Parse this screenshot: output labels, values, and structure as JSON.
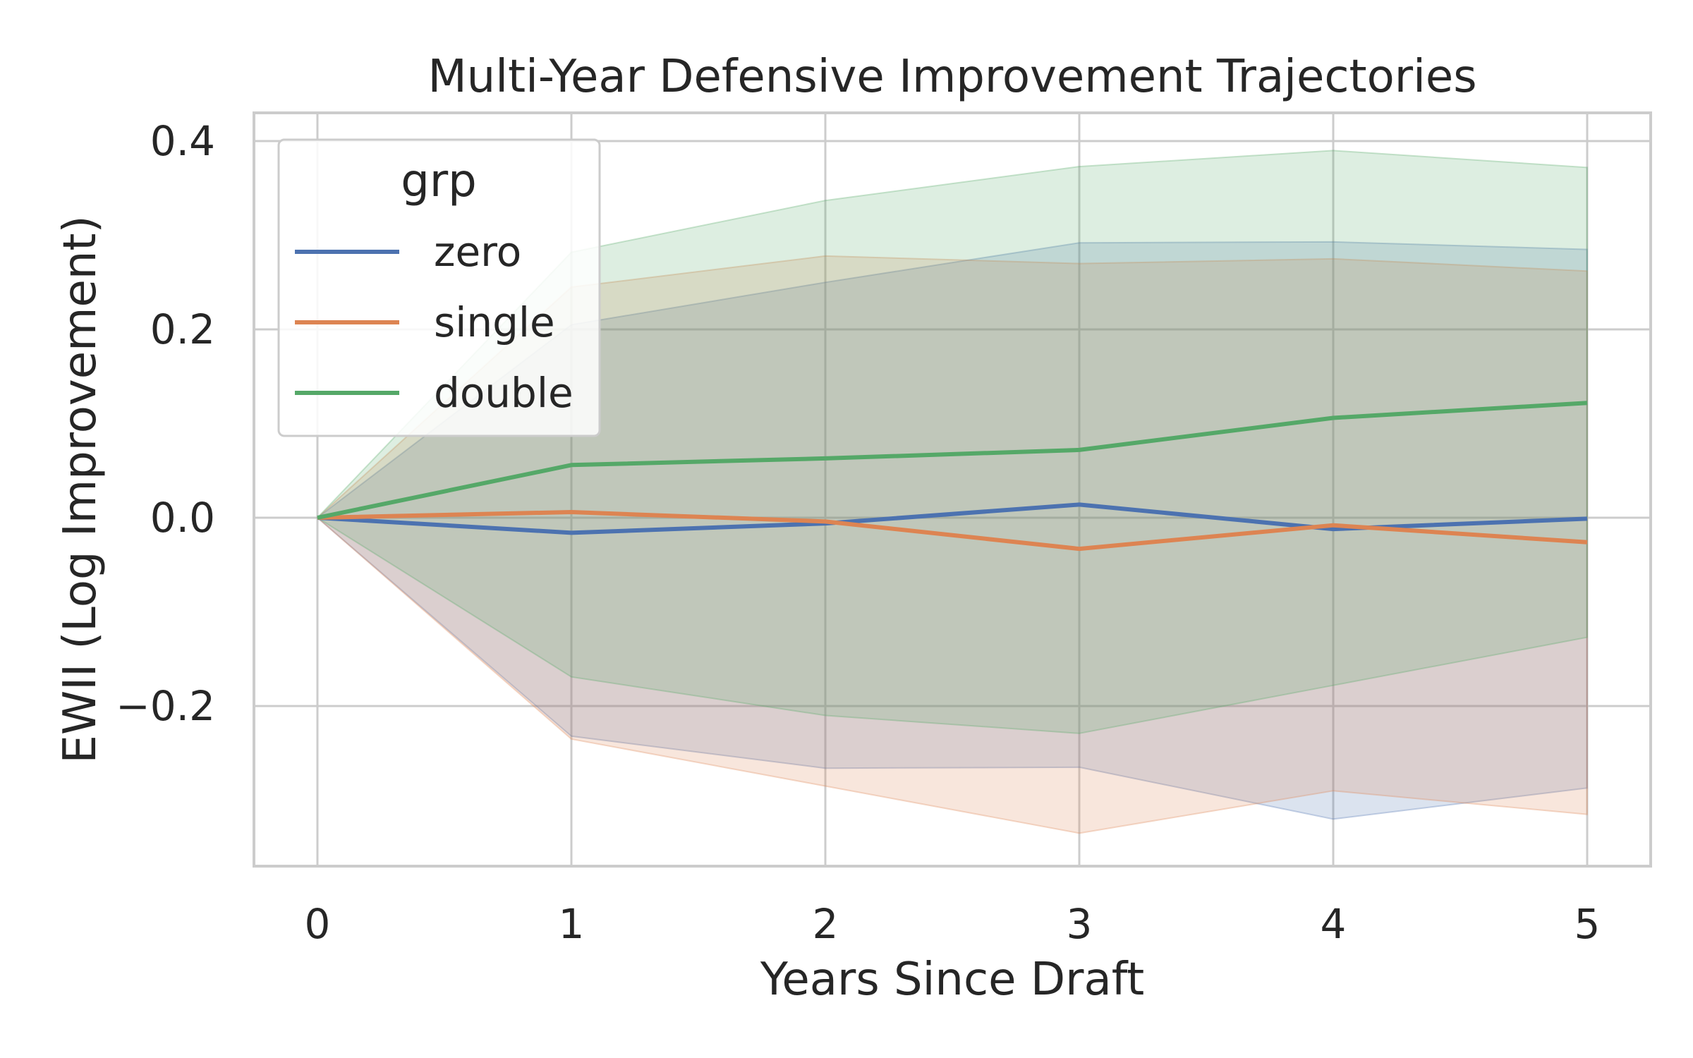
{
  "chart_data": {
    "type": "line",
    "title": "Multi-Year Defensive Improvement Trajectories",
    "xlabel": "Years Since Draft",
    "ylabel": "EWII (Log Improvement)",
    "x": [
      0,
      1,
      2,
      3,
      4,
      5
    ],
    "xlim": [
      -0.25,
      5.25
    ],
    "ylim": [
      -0.37,
      0.43
    ],
    "xticks": [
      0,
      1,
      2,
      3,
      4,
      5
    ],
    "yticks": [
      -0.2,
      0.0,
      0.2,
      0.4
    ],
    "ytick_labels": [
      "−0.2",
      "0.0",
      "0.2",
      "0.4"
    ],
    "grid": true,
    "legend": {
      "title": "grp",
      "placement": "upper-left"
    },
    "series": [
      {
        "name": "zero",
        "color": "#4c72b0",
        "values": [
          0.0,
          -0.016,
          -0.006,
          0.014,
          -0.012,
          -0.001
        ],
        "ci_upper": [
          0.0,
          0.205,
          0.25,
          0.292,
          0.293,
          0.285
        ],
        "ci_lower": [
          0.0,
          -0.232,
          -0.266,
          -0.265,
          -0.32,
          -0.287
        ]
      },
      {
        "name": "single",
        "color": "#dd8452",
        "values": [
          0.0,
          0.006,
          -0.004,
          -0.033,
          -0.008,
          -0.026
        ],
        "ci_upper": [
          0.0,
          0.245,
          0.278,
          0.27,
          0.275,
          0.262
        ],
        "ci_lower": [
          0.0,
          -0.235,
          -0.285,
          -0.335,
          -0.29,
          -0.315
        ]
      },
      {
        "name": "double",
        "color": "#55a868",
        "values": [
          0.0,
          0.056,
          0.063,
          0.072,
          0.106,
          0.122
        ],
        "ci_upper": [
          0.0,
          0.282,
          0.337,
          0.373,
          0.39,
          0.372
        ],
        "ci_lower": [
          0.0,
          -0.169,
          -0.21,
          -0.229,
          -0.178,
          -0.127
        ]
      }
    ]
  }
}
